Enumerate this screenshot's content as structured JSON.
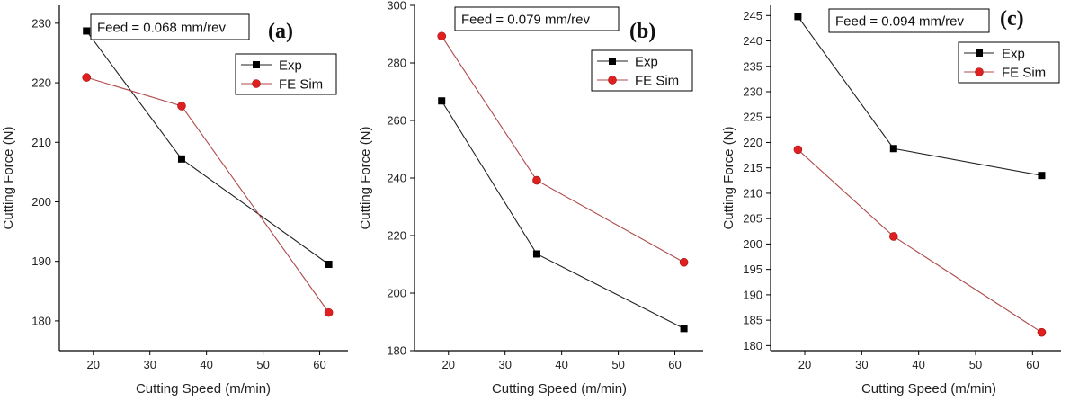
{
  "chart_data": [
    {
      "type": "line",
      "panel_label": "(a)",
      "feed_label": "Feed = 0.068 mm/rev",
      "xlabel": "Cutting Speed (m/min)",
      "ylabel": "Cutting Force (N)",
      "xlim": [
        14,
        65
      ],
      "ylim": [
        175,
        233
      ],
      "xticks": [
        20,
        30,
        40,
        50,
        60
      ],
      "yticks": [
        180,
        190,
        200,
        210,
        220,
        230
      ],
      "legend_position": "top-right",
      "series": [
        {
          "name": "Exp",
          "color": "#000000",
          "marker": "square",
          "x": [
            18.8,
            35.6,
            61.6
          ],
          "values": [
            228.7,
            207.2,
            189.5
          ]
        },
        {
          "name": "FE Sim",
          "color": "#e02020",
          "marker": "circle",
          "x": [
            18.8,
            35.6,
            61.6
          ],
          "values": [
            220.9,
            216.1,
            181.4
          ]
        }
      ]
    },
    {
      "type": "line",
      "panel_label": "(b)",
      "feed_label": "Feed = 0.079 mm/rev",
      "xlabel": "Cutting Speed  (m/min)",
      "ylabel": "Cutting Force (N)",
      "xlim": [
        14,
        65
      ],
      "ylim": [
        180,
        300
      ],
      "xticks": [
        20,
        30,
        40,
        50,
        60
      ],
      "yticks": [
        180,
        200,
        220,
        240,
        260,
        280,
        300
      ],
      "legend_position": "top-right",
      "series": [
        {
          "name": "Exp",
          "color": "#000000",
          "marker": "square",
          "x": [
            18.8,
            35.6,
            61.6
          ],
          "values": [
            266.8,
            213.6,
            187.7
          ]
        },
        {
          "name": "FE Sim",
          "color": "#e02020",
          "marker": "circle",
          "x": [
            18.8,
            35.6,
            61.6
          ],
          "values": [
            289.3,
            239.2,
            210.7
          ]
        }
      ]
    },
    {
      "type": "line",
      "panel_label": "(c)",
      "feed_label": "Feed = 0.094 mm/rev",
      "xlabel": "Cutting Speed (m/min)",
      "ylabel": "Cutting Force (N)",
      "xlim": [
        14,
        65
      ],
      "ylim": [
        179,
        247
      ],
      "xticks": [
        20,
        30,
        40,
        50,
        60
      ],
      "yticks": [
        180,
        185,
        190,
        195,
        200,
        205,
        210,
        215,
        220,
        225,
        230,
        235,
        240,
        245
      ],
      "legend_position": "top-right",
      "series": [
        {
          "name": "Exp",
          "color": "#000000",
          "marker": "square",
          "x": [
            18.8,
            35.6,
            61.6
          ],
          "values": [
            244.8,
            218.8,
            213.5
          ]
        },
        {
          "name": "FE Sim",
          "color": "#e02020",
          "marker": "circle",
          "x": [
            18.8,
            35.6,
            61.6
          ],
          "values": [
            218.6,
            201.5,
            182.6
          ]
        }
      ]
    }
  ]
}
